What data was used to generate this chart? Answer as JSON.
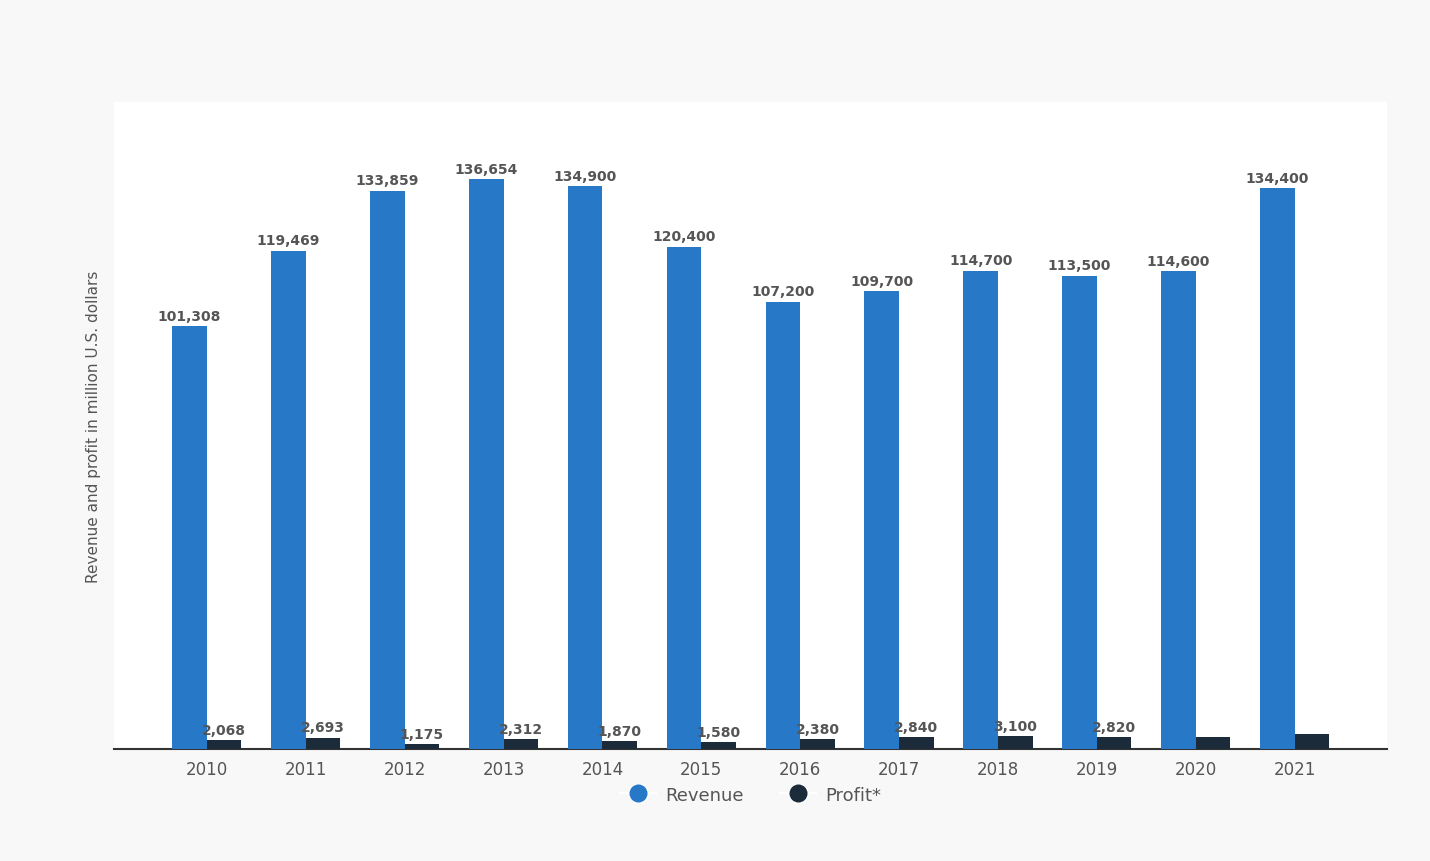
{
  "years": [
    2010,
    2011,
    2012,
    2013,
    2014,
    2015,
    2016,
    2017,
    2018,
    2019,
    2020,
    2021
  ],
  "revenue": [
    101308,
    119469,
    133859,
    136654,
    134900,
    120400,
    107200,
    109700,
    114700,
    113500,
    114600,
    134400
  ],
  "profit": [
    2068,
    2693,
    1175,
    2312,
    1870,
    1580,
    2380,
    2840,
    3100,
    2820,
    2820,
    3600
  ],
  "revenue_labels": [
    "101,308",
    "119,469",
    "133,859",
    "136,654",
    "134,900",
    "120,400",
    "107,200",
    "109,700",
    "114,700",
    "113,500",
    "114,600",
    "134,400"
  ],
  "profit_labels": [
    "2,068",
    "2,693",
    "1,175",
    "2,312",
    "1,870",
    "1,580",
    "2,380",
    "2,840",
    "3,100",
    "2,820",
    "",
    ""
  ],
  "revenue_color": "#2878c8",
  "profit_color": "#1c2b3a",
  "background_color": "#f8f8f8",
  "plot_bg_color": "#ffffff",
  "header_color": "#e8e8e8",
  "ylabel": "Revenue and profit in million U.S. dollars",
  "legend_revenue": "Revenue",
  "legend_profit": "Profit*",
  "bar_width": 0.35,
  "ylim": [
    0,
    155000
  ],
  "grid_color": "#cccccc",
  "text_color": "#555555",
  "label_fontsize": 10,
  "tick_fontsize": 12
}
